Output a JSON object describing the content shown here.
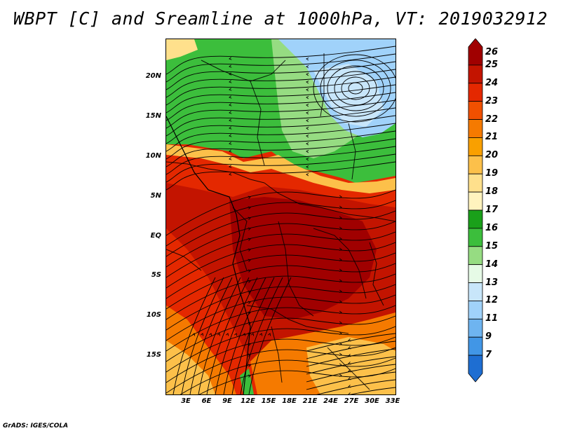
{
  "title": "WBPT [C] and Sreamline at 1000hPa, VT: 2019032912",
  "footer": "GrADS: IGES/COLA",
  "lat_labels": [
    "20N",
    "15N",
    "10N",
    "5N",
    "EQ",
    "5S",
    "10S",
    "15S"
  ],
  "lon_labels": [
    "3E",
    "6E",
    "9E",
    "12E",
    "15E",
    "18E",
    "21E",
    "24E",
    "27E",
    "30E",
    "33E"
  ],
  "colorbar": {
    "labels": [
      "26",
      "25",
      "24",
      "23",
      "22",
      "21",
      "20",
      "19",
      "18",
      "17",
      "16",
      "15",
      "14",
      "13",
      "12",
      "11",
      "9",
      "7"
    ],
    "colors": [
      "#a00000",
      "#c31400",
      "#e42800",
      "#f05000",
      "#f57a00",
      "#f9a000",
      "#fcc04a",
      "#ffe08c",
      "#fff3be",
      "#1aa01a",
      "#3cbe3c",
      "#96dc82",
      "#e6fae6",
      "#c8e6fa",
      "#a0d2fa",
      "#6eb4f0",
      "#4196e6",
      "#1e6ed2"
    ]
  },
  "map_regions": {
    "green_north": "#3cbe3c",
    "light_green": "#96dc82",
    "blue_northeast": "#a0d2fa",
    "light_blue": "#c8e6fa",
    "red_core": "#a00000",
    "red": "#c31400",
    "orange_red": "#e42800",
    "orange": "#f57a00",
    "light_orange": "#fcc04a",
    "pale_yellow": "#ffe08c"
  }
}
